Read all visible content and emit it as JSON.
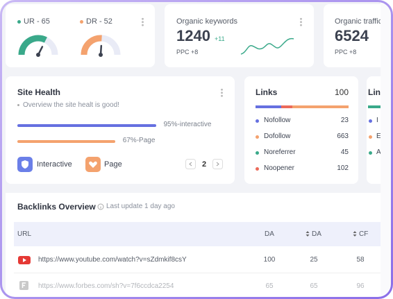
{
  "stats": [
    {
      "label": "UR - 65",
      "value": 65,
      "color": "#3aa98a"
    },
    {
      "label": "DR - 52",
      "value": 52,
      "color": "#f4a26e"
    }
  ],
  "keywords": {
    "title": "Organic keywords",
    "value": 1240,
    "change": "+11",
    "ppc": "PPC +8"
  },
  "traffic": {
    "title": "Organic traffic",
    "value": 6524,
    "ppc": "PPC +8"
  },
  "site_health": {
    "title": "Site Health",
    "subtitle": "Overview the site healt is good!",
    "bars": [
      {
        "label": "95%-interactive",
        "value": 95,
        "color": "#6670e0"
      },
      {
        "label": "67%-Page",
        "value": 67,
        "color": "#f4a26e"
      }
    ],
    "legend": [
      "Interactive",
      "Page"
    ],
    "page": 2
  },
  "links": {
    "title": "Links",
    "total": 100,
    "items": [
      {
        "name": "Nofollow",
        "count": 23,
        "color": "#6670e0"
      },
      {
        "name": "Dofollow",
        "count": 663,
        "color": "#f4a26e"
      },
      {
        "name": "Noreferrer",
        "count": 45,
        "color": "#3aa98a"
      },
      {
        "name": "Noopener",
        "count": 102,
        "color": "#ec6a5a"
      }
    ]
  },
  "links_partial": {
    "title": "Links",
    "items": [
      "I",
      "E",
      "A"
    ]
  },
  "backlinks": {
    "title": "Backlinks Overview",
    "updated": "Last update 1 day ago",
    "columns": [
      "URL",
      "DA",
      "DA",
      "CF"
    ],
    "rows": [
      [
        "https://www.youtube.com/watch?v=sZdmkif8csY",
        100,
        25,
        58
      ],
      [
        "https://www.forbes.com/sh?v=7f6ccdca2254",
        65,
        65,
        96
      ]
    ]
  }
}
